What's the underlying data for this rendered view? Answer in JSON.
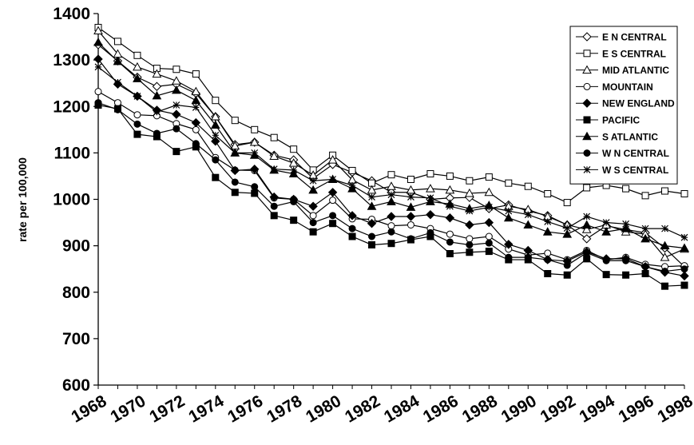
{
  "chart_data": {
    "type": "line",
    "title": "",
    "xlabel": "",
    "ylabel": "rate per 100,000",
    "ylim": [
      600,
      1400
    ],
    "xlim": [
      1968,
      1998
    ],
    "yticks": [
      600,
      700,
      800,
      900,
      1000,
      1100,
      1200,
      1300,
      1400
    ],
    "xticks": [
      "1968",
      "1970",
      "1972",
      "1974",
      "1976",
      "1978",
      "1980",
      "1982",
      "1984",
      "1986",
      "1988",
      "1990",
      "1992",
      "1994",
      "1996",
      "1998"
    ],
    "grid": false,
    "legend_position": "top-right",
    "x": [
      1968,
      1969,
      1970,
      1971,
      1972,
      1973,
      1974,
      1975,
      1976,
      1977,
      1978,
      1979,
      1980,
      1981,
      1982,
      1983,
      1984,
      1985,
      1986,
      1987,
      1988,
      1989,
      1990,
      1991,
      1992,
      1993,
      1994,
      1995,
      1996,
      1997,
      1998
    ],
    "series": [
      {
        "name": "E N CENTRAL",
        "marker": "diamond-open",
        "values": [
          1333,
          1298,
          1263,
          1243,
          1248,
          1228,
          1178,
          1118,
          1123,
          1095,
          1085,
          1045,
          1075,
          1058,
          1040,
          1015,
          1015,
          1000,
          1003,
          1004,
          980,
          988,
          975,
          965,
          945,
          915,
          943,
          935,
          928,
          895,
          855
        ]
      },
      {
        "name": "E S CENTRAL",
        "marker": "square-open",
        "values": [
          1370,
          1340,
          1310,
          1282,
          1280,
          1270,
          1213,
          1170,
          1150,
          1133,
          1108,
          1063,
          1095,
          1062,
          1035,
          1053,
          1043,
          1055,
          1050,
          1040,
          1048,
          1035,
          1028,
          1012,
          993,
          1025,
          1030,
          1023,
          1008,
          1018,
          1012
        ]
      },
      {
        "name": "MID ATLANTIC",
        "marker": "triangle-open",
        "values": [
          1363,
          1313,
          1285,
          1270,
          1255,
          1232,
          1178,
          1115,
          1123,
          1093,
          1078,
          1052,
          1085,
          1042,
          1020,
          1028,
          1020,
          1023,
          1020,
          1013,
          1015,
          985,
          978,
          963,
          945,
          935,
          945,
          930,
          925,
          875,
          893
        ]
      },
      {
        "name": "MOUNTAIN",
        "marker": "circle-open",
        "values": [
          1232,
          1208,
          1182,
          1180,
          1163,
          1150,
          1090,
          1063,
          1062,
          1003,
          1000,
          965,
          998,
          958,
          957,
          943,
          945,
          937,
          925,
          915,
          920,
          893,
          880,
          884,
          870,
          890,
          870,
          875,
          860,
          855,
          857
        ]
      },
      {
        "name": "NEW ENGLAND",
        "marker": "diamond",
        "values": [
          1302,
          1248,
          1222,
          1192,
          1183,
          1165,
          1125,
          1062,
          1065,
          1005,
          1000,
          985,
          1015,
          965,
          948,
          963,
          963,
          967,
          960,
          945,
          950,
          903,
          890,
          870,
          867,
          887,
          872,
          872,
          855,
          843,
          835
        ]
      },
      {
        "name": "PACIFIC",
        "marker": "square",
        "values": [
          1203,
          1195,
          1140,
          1135,
          1103,
          1113,
          1047,
          1015,
          1013,
          965,
          955,
          930,
          948,
          920,
          902,
          905,
          913,
          920,
          883,
          886,
          888,
          870,
          870,
          840,
          837,
          872,
          838,
          837,
          840,
          813,
          815
        ]
      },
      {
        "name": "S ATLANTIC",
        "marker": "triangle",
        "values": [
          1338,
          1297,
          1260,
          1223,
          1235,
          1213,
          1160,
          1100,
          1095,
          1063,
          1055,
          1020,
          1043,
          1023,
          985,
          995,
          983,
          995,
          990,
          980,
          987,
          960,
          945,
          930,
          925,
          945,
          930,
          937,
          915,
          900,
          895
        ]
      },
      {
        "name": "W N CENTRAL",
        "marker": "circle",
        "values": [
          1208,
          1193,
          1162,
          1142,
          1152,
          1120,
          1085,
          1037,
          1027,
          985,
          995,
          950,
          965,
          937,
          920,
          930,
          915,
          928,
          908,
          902,
          906,
          875,
          875,
          870,
          858,
          885,
          868,
          868,
          855,
          845,
          850
        ]
      },
      {
        "name": "W S CENTRAL",
        "marker": "star",
        "values": [
          1285,
          1252,
          1222,
          1188,
          1203,
          1198,
          1138,
          1100,
          1100,
          1065,
          1063,
          1040,
          1043,
          1030,
          1005,
          1010,
          1005,
          1003,
          985,
          975,
          983,
          975,
          967,
          952,
          938,
          963,
          950,
          947,
          937,
          937,
          918
        ]
      }
    ]
  }
}
